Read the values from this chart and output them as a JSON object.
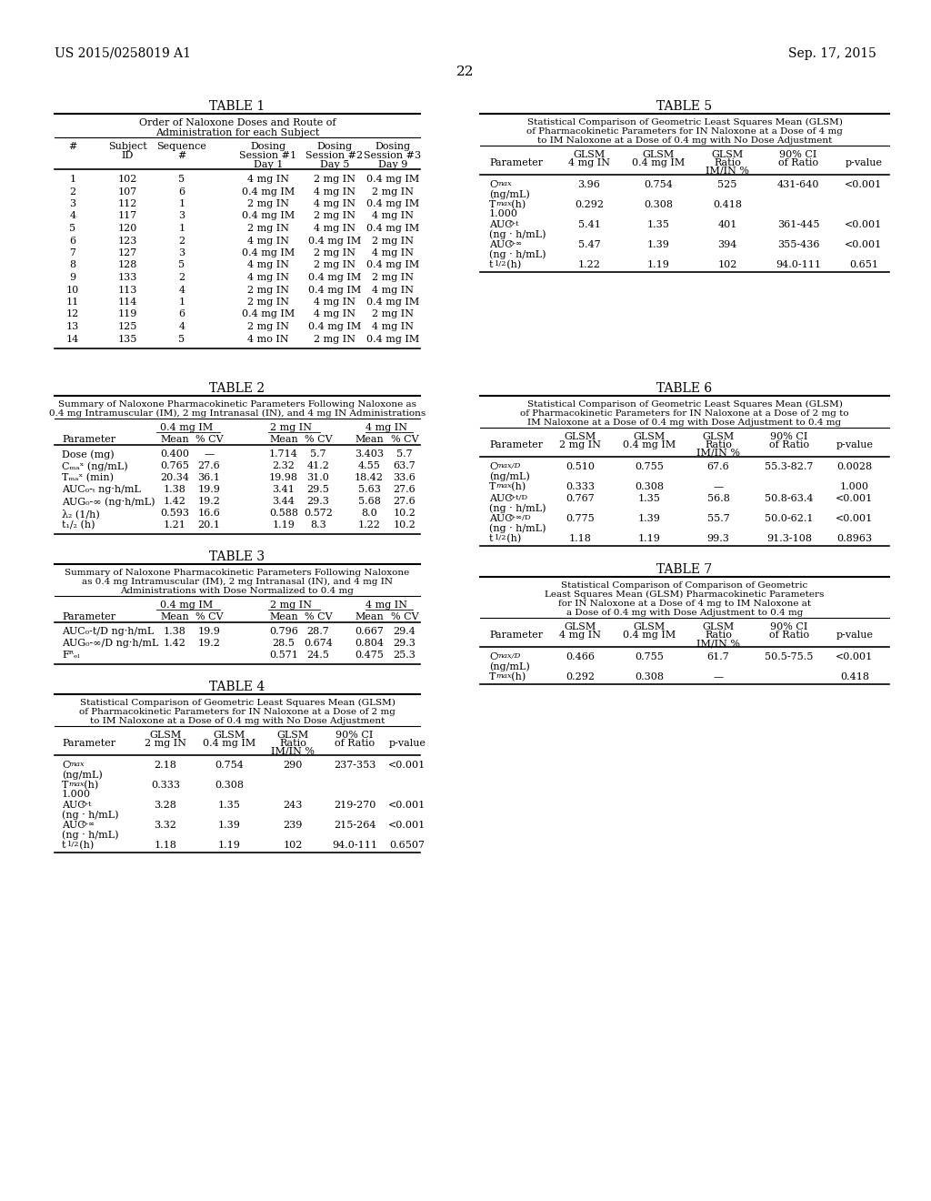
{
  "header_left": "US 2015/0258019 A1",
  "header_right": "Sep. 17, 2015",
  "page_number": "22",
  "bg": "#ffffff"
}
